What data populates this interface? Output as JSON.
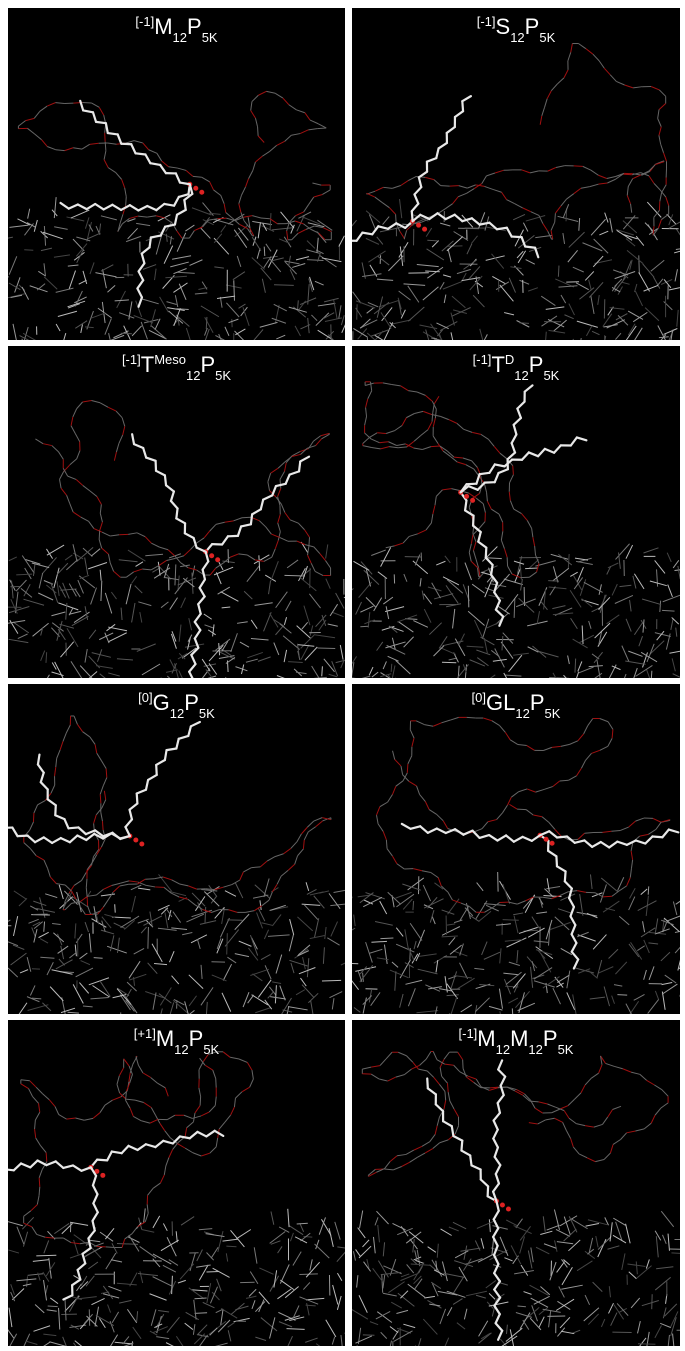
{
  "panels": [
    {
      "label": [
        {
          "t": "[-1]",
          "pos": "sup"
        },
        {
          "t": "M",
          "pos": "base"
        },
        {
          "t": "12",
          "pos": "sub"
        },
        {
          "t": "P",
          "pos": "base"
        },
        {
          "t": "5K",
          "pos": "sub"
        }
      ]
    },
    {
      "label": [
        {
          "t": "[-1]",
          "pos": "sup"
        },
        {
          "t": "S",
          "pos": "base"
        },
        {
          "t": "12",
          "pos": "sub"
        },
        {
          "t": "P",
          "pos": "base"
        },
        {
          "t": "5K",
          "pos": "sub"
        }
      ]
    },
    {
      "label": [
        {
          "t": "[-1]",
          "pos": "sup"
        },
        {
          "t": "T",
          "pos": "base"
        },
        {
          "t": "Meso",
          "pos": "sup"
        },
        {
          "t": "12",
          "pos": "sub"
        },
        {
          "t": "P",
          "pos": "base"
        },
        {
          "t": "5K",
          "pos": "sub"
        }
      ]
    },
    {
      "label": [
        {
          "t": "[-1]",
          "pos": "sup"
        },
        {
          "t": "T",
          "pos": "base"
        },
        {
          "t": "D",
          "pos": "sup"
        },
        {
          "t": "12",
          "pos": "sub"
        },
        {
          "t": "P",
          "pos": "base"
        },
        {
          "t": "5K",
          "pos": "sub"
        }
      ]
    },
    {
      "label": [
        {
          "t": "[0]",
          "pos": "sup"
        },
        {
          "t": "G",
          "pos": "base"
        },
        {
          "t": "12",
          "pos": "sub"
        },
        {
          "t": "P",
          "pos": "base"
        },
        {
          "t": "5K",
          "pos": "sub"
        }
      ]
    },
    {
      "label": [
        {
          "t": "[0]",
          "pos": "sup"
        },
        {
          "t": "GL",
          "pos": "base"
        },
        {
          "t": "12",
          "pos": "sub"
        },
        {
          "t": "P",
          "pos": "base"
        },
        {
          "t": "5K",
          "pos": "sub"
        }
      ]
    },
    {
      "label": [
        {
          "t": "[+1]",
          "pos": "sup"
        },
        {
          "t": "M",
          "pos": "base"
        },
        {
          "t": "12",
          "pos": "sub"
        },
        {
          "t": "P",
          "pos": "base"
        },
        {
          "t": "5K",
          "pos": "sub"
        }
      ]
    },
    {
      "label": [
        {
          "t": "[-1]",
          "pos": "sup"
        },
        {
          "t": "M",
          "pos": "base"
        },
        {
          "t": "12",
          "pos": "sub"
        },
        {
          "t": "M",
          "pos": "base"
        },
        {
          "t": "12",
          "pos": "sub"
        },
        {
          "t": "P",
          "pos": "base"
        },
        {
          "t": "5K",
          "pos": "sub"
        }
      ]
    }
  ]
}
